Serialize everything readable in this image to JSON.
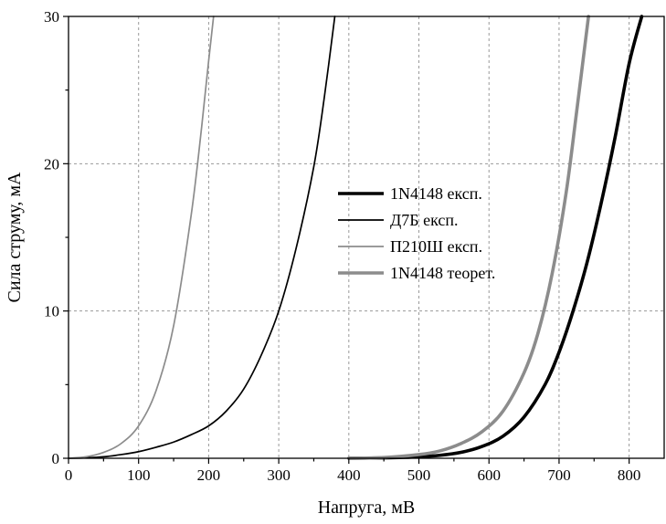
{
  "chart_data": {
    "type": "line",
    "title": "",
    "xlabel": "Напруга, мВ",
    "ylabel": "Сила струму, мА",
    "xlim": [
      0,
      850
    ],
    "ylim": [
      0,
      30
    ],
    "xticks": [
      0,
      100,
      200,
      300,
      400,
      500,
      600,
      700,
      800
    ],
    "yticks": [
      0,
      10,
      20,
      30
    ],
    "xtick_labels": [
      "0",
      "100",
      "200",
      "300",
      "400",
      "500",
      "600",
      "700",
      "800"
    ],
    "ytick_labels": [
      "0",
      "10",
      "20",
      "30"
    ],
    "grid": true,
    "legend_position": "center-right",
    "series": [
      {
        "name": "1N4148 експ.",
        "color": "#000000",
        "width": "thick",
        "x": [
          400,
          450,
          500,
          530,
          560,
          590,
          620,
          650,
          680,
          700,
          720,
          740,
          760,
          780,
          800,
          818
        ],
        "y": [
          0,
          0.03,
          0.1,
          0.2,
          0.4,
          0.8,
          1.5,
          2.8,
          5.0,
          7.2,
          10.0,
          13.3,
          17.3,
          21.8,
          26.8,
          30.0
        ]
      },
      {
        "name": "Д7Б експ.",
        "color": "#000000",
        "width": "thin",
        "x": [
          0,
          25,
          50,
          75,
          100,
          125,
          150,
          175,
          200,
          225,
          250,
          275,
          300,
          325,
          350,
          365,
          380
        ],
        "y": [
          0,
          0.03,
          0.1,
          0.25,
          0.45,
          0.75,
          1.1,
          1.6,
          2.2,
          3.2,
          4.7,
          7.0,
          10.0,
          14.3,
          19.8,
          24.5,
          30.0
        ]
      },
      {
        "name": "П210Ш експ.",
        "color": "#8c8c8c",
        "width": "thin",
        "x": [
          0,
          25,
          50,
          75,
          100,
          125,
          150,
          175,
          190,
          200,
          207
        ],
        "y": [
          0,
          0.1,
          0.4,
          1.0,
          2.2,
          4.6,
          9.0,
          16.5,
          22.5,
          27.0,
          30.0
        ]
      },
      {
        "name": "1N4148 теорет.",
        "color": "#8c8c8c",
        "width": "thick",
        "x": [
          400,
          450,
          500,
          530,
          560,
          590,
          620,
          650,
          670,
          690,
          710,
          725,
          742
        ],
        "y": [
          0,
          0.05,
          0.25,
          0.5,
          1.0,
          1.8,
          3.2,
          5.8,
          8.5,
          12.5,
          18.0,
          23.5,
          30.0
        ]
      }
    ]
  }
}
